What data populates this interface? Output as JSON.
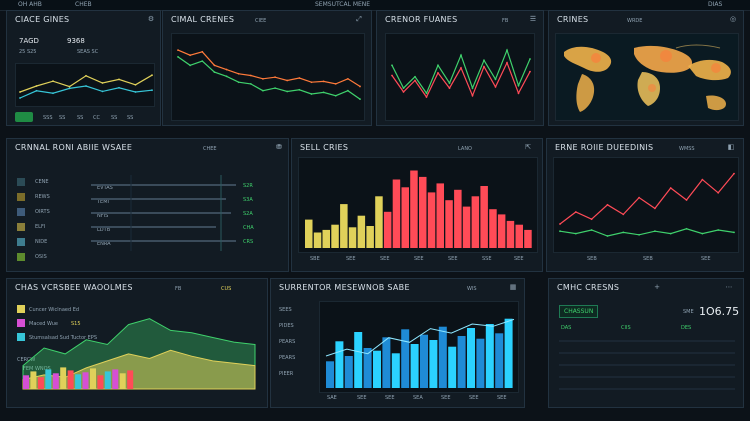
{
  "topbar": {
    "left_a": "OH AHB",
    "left_b": "CHEB",
    "right_a": "SEMSUTCAL MENE",
    "right_b": "DIAS"
  },
  "panels": {
    "p1": {
      "title": "CIACE GINES",
      "stats": [
        "7AGD",
        "9368",
        "25 S25",
        "SEAS SC"
      ],
      "ticks": [
        "SSS",
        "SS",
        "SS",
        "CC",
        "SS",
        "SS"
      ]
    },
    "p2": {
      "title": "CIMAL CRENES",
      "sub": "CIEE"
    },
    "p3": {
      "title": "CRENOR FUANES",
      "sub": "FB"
    },
    "p4": {
      "title": "CRINES",
      "sub": "WRDE"
    },
    "p5": {
      "title": "CRNNAL RONI ABIIE WSAEE",
      "sub": "CHEE",
      "rows": [
        "CENE",
        "REWS",
        "OIRTS",
        "ELFI",
        "NIDE",
        "OSIS"
      ],
      "vals": [
        "EVTAS",
        "TEMI",
        "NFIS",
        "LDTB",
        "ENRA"
      ],
      "col": [
        "S2R",
        "S3A",
        "S2A",
        "CHA",
        "CRS"
      ]
    },
    "p6": {
      "title": "SELL CRIES",
      "sub": "LANO",
      "ticks": [
        "SBE",
        "SEE",
        "SEE",
        "SEE",
        "SEE",
        "SSE",
        "SEE"
      ]
    },
    "p7": {
      "title": "ERNE ROIIE DUEEDINIS",
      "sub": "WMSS",
      "ticks": [
        "SEB",
        "SEB",
        "SEE"
      ]
    },
    "p8": {
      "title": "CHAS VCRSBEE WAOOLMES",
      "tags": [
        "FB",
        "CUS"
      ],
      "legend": [
        "Cuncer Wiclnaed Ed",
        "Maced Wue",
        "Stumsalsad Sud Tuctor EPS"
      ],
      "legend_vals": [
        "",
        "S15",
        ""
      ],
      "note": "CERCW",
      "note2": "FEM WNOS"
    },
    "p9": {
      "title": "SURRENTOR MESEWNOB SABE",
      "sub": "WIS",
      "left": [
        "SEES",
        "PIDES",
        "PEARS",
        "PEARS",
        "PIEER"
      ],
      "ticks": [
        "SAE",
        "SEE",
        "SEE",
        "SEA",
        "SEE",
        "SEE",
        "SEE"
      ]
    },
    "p10": {
      "title": "CMHC CRESNS",
      "big": "1O6.75",
      "big_label": "SME",
      "tag": "CHASSUN",
      "cols": [
        "DAS",
        "CIIS",
        "DES"
      ]
    }
  },
  "chart_data": [
    {
      "type": "line",
      "series": [
        {
          "values": [
            20,
            30,
            38,
            29,
            47,
            35,
            41,
            32,
            48
          ]
        },
        {
          "values": [
            10,
            22,
            18,
            26,
            30,
            21,
            27,
            20,
            23
          ]
        }
      ]
    },
    {
      "type": "line",
      "series": [
        {
          "values": [
            78,
            72,
            76,
            60,
            55,
            50,
            48,
            44,
            46,
            42,
            45,
            40,
            41,
            38,
            44,
            35
          ]
        },
        {
          "values": [
            70,
            60,
            65,
            52,
            47,
            40,
            38,
            30,
            33,
            29,
            31,
            26,
            28,
            24,
            30,
            20
          ]
        }
      ]
    },
    {
      "type": "line",
      "series": [
        {
          "values": [
            40,
            22,
            31,
            18,
            40,
            26,
            48,
            22,
            44,
            29,
            52,
            24,
            45
          ]
        },
        {
          "values": [
            32,
            19,
            28,
            15,
            34,
            22,
            38,
            16,
            39,
            23,
            42,
            18,
            35
          ]
        }
      ]
    },
    {
      "type": "bar",
      "values": [
        22,
        12,
        14,
        18,
        34,
        16,
        25,
        17,
        40,
        28,
        53,
        47,
        60,
        55,
        43,
        50,
        37,
        45,
        32,
        40,
        48,
        30,
        26,
        21,
        18,
        14
      ]
    },
    {
      "type": "line",
      "series": [
        {
          "values": [
            20,
            30,
            24,
            36,
            28,
            42,
            33,
            50,
            40,
            57,
            46,
            62
          ]
        },
        {
          "values": [
            14,
            12,
            15,
            10,
            13,
            11,
            14,
            12,
            16,
            12,
            15,
            13
          ]
        }
      ]
    },
    {
      "type": "area",
      "series": [
        {
          "values": [
            20,
            35,
            30,
            42,
            38,
            55,
            60,
            50,
            48,
            44,
            40,
            38
          ]
        },
        {
          "values": [
            8,
            12,
            10,
            18,
            24,
            30,
            26,
            33,
            28,
            24,
            22,
            20
          ]
        }
      ]
    },
    {
      "type": "bar",
      "values": [
        20,
        35,
        24,
        42,
        30,
        28,
        38,
        26,
        44,
        33,
        40,
        36,
        46,
        31,
        39,
        45,
        37,
        48,
        41,
        52
      ]
    }
  ]
}
